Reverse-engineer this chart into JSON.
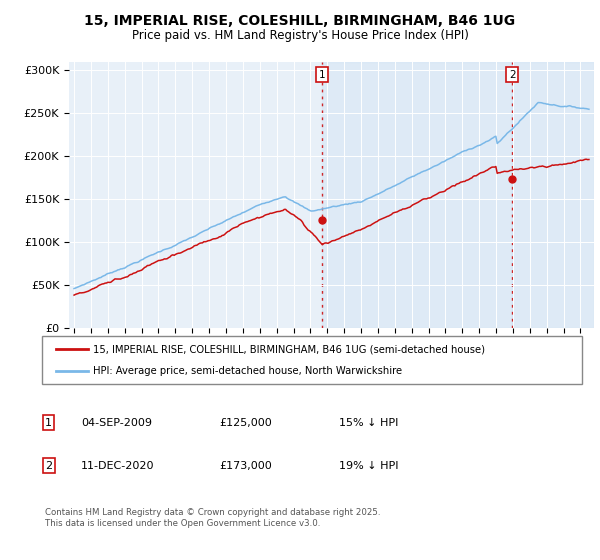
{
  "title1": "15, IMPERIAL RISE, COLESHILL, BIRMINGHAM, B46 1UG",
  "title2": "Price paid vs. HM Land Registry's House Price Index (HPI)",
  "ylabel_ticks": [
    "£0",
    "£50K",
    "£100K",
    "£150K",
    "£200K",
    "£250K",
    "£300K"
  ],
  "ytick_vals": [
    0,
    50000,
    100000,
    150000,
    200000,
    250000,
    300000
  ],
  "ylim": [
    0,
    310000
  ],
  "xlim_start": 1994.7,
  "xlim_end": 2025.8,
  "marker1_x": 2009.67,
  "marker1_y": 125000,
  "marker2_x": 2020.95,
  "marker2_y": 173000,
  "hpi_color": "#7ab8e8",
  "price_color": "#cc1111",
  "shaded_color": "#ccdff5",
  "background_color": "#e8f0f8",
  "legend_label1": "15, IMPERIAL RISE, COLESHILL, BIRMINGHAM, B46 1UG (semi-detached house)",
  "legend_label2": "HPI: Average price, semi-detached house, North Warwickshire",
  "marker1_date": "04-SEP-2009",
  "marker1_price": "£125,000",
  "marker1_hpi": "15% ↓ HPI",
  "marker2_date": "11-DEC-2020",
  "marker2_price": "£173,000",
  "marker2_hpi": "19% ↓ HPI",
  "footer": "Contains HM Land Registry data © Crown copyright and database right 2025.\nThis data is licensed under the Open Government Licence v3.0."
}
